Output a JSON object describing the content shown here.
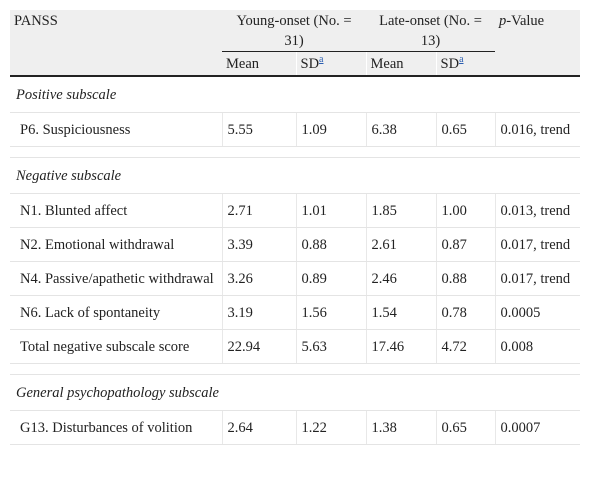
{
  "header": {
    "panss": "PANSS",
    "young_onset": "Young-onset (No. = 31)",
    "late_onset": "Late-onset (No. = 13)",
    "p_value_italic": "p",
    "p_value_rest": "-Value",
    "mean": "Mean",
    "sd": "SD",
    "sd_footnote": "a"
  },
  "sections": [
    {
      "title": "Positive subscale",
      "rows": [
        {
          "item": "P6. Suspiciousness",
          "young_mean": "5.55",
          "young_sd": "1.09",
          "late_mean": "6.38",
          "late_sd": "0.65",
          "p": "0.016, trend"
        }
      ]
    },
    {
      "title": "Negative subscale",
      "rows": [
        {
          "item": "N1. Blunted affect",
          "young_mean": "2.71",
          "young_sd": "1.01",
          "late_mean": "1.85",
          "late_sd": "1.00",
          "p": "0.013, trend"
        },
        {
          "item": "N2. Emotional withdrawal",
          "young_mean": "3.39",
          "young_sd": "0.88",
          "late_mean": "2.61",
          "late_sd": "0.87",
          "p": "0.017, trend"
        },
        {
          "item": "N4. Passive/apathetic withdrawal",
          "young_mean": "3.26",
          "young_sd": "0.89",
          "late_mean": "2.46",
          "late_sd": "0.88",
          "p": "0.017, trend"
        },
        {
          "item": "N6. Lack of spontaneity",
          "young_mean": "3.19",
          "young_sd": "1.56",
          "late_mean": "1.54",
          "late_sd": "0.78",
          "p": "0.0005"
        },
        {
          "item": "Total negative subscale score",
          "young_mean": "22.94",
          "young_sd": "5.63",
          "late_mean": "17.46",
          "late_sd": "4.72",
          "p": "0.008"
        }
      ]
    },
    {
      "title": "General psychopathology subscale",
      "rows": [
        {
          "item": "G13. Disturbances of volition",
          "young_mean": "2.64",
          "young_sd": "1.22",
          "late_mean": "1.38",
          "late_sd": "0.65",
          "p": "0.0007"
        }
      ]
    }
  ]
}
